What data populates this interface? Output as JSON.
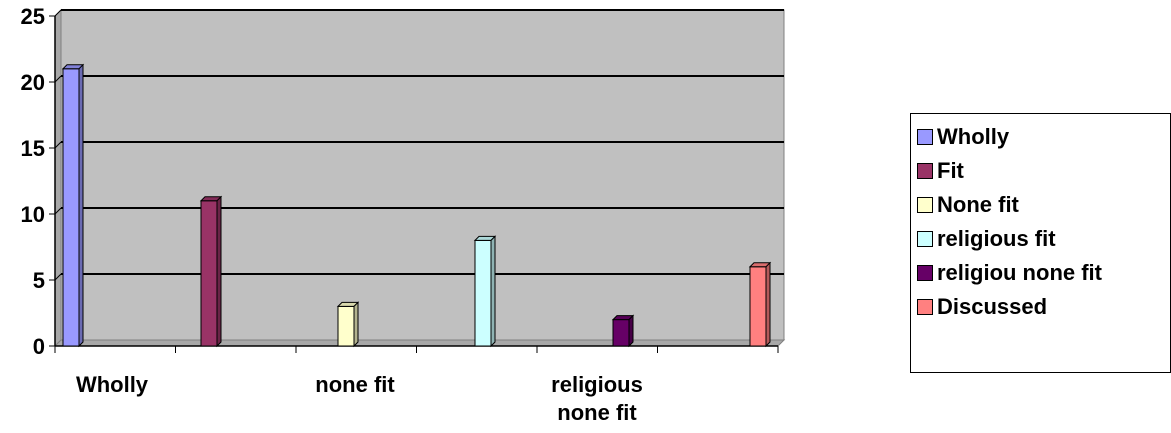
{
  "chart_data": {
    "type": "bar",
    "title": "",
    "xlabel": "",
    "ylabel": "",
    "ylim": [
      0,
      25
    ],
    "yticks": [
      0,
      5,
      10,
      15,
      20,
      25
    ],
    "grid": true,
    "legend_position": "right",
    "plot_background": "#c0c0c0",
    "categories": [
      "Wholly",
      "Fit",
      "None fit",
      "religious fit",
      "religiou none fit",
      "Discussed"
    ],
    "x_tick_labels": [
      "Wholly",
      "none fit",
      "religious none fit"
    ],
    "series": [
      {
        "name": "Wholly",
        "color": "#9999ff",
        "values": [
          21,
          0,
          0,
          0,
          0,
          0
        ]
      },
      {
        "name": "Fit",
        "color": "#993366",
        "values": [
          0,
          11,
          0,
          0,
          0,
          0
        ]
      },
      {
        "name": "None fit",
        "color": "#ffffcc",
        "values": [
          0,
          0,
          3,
          0,
          0,
          0
        ]
      },
      {
        "name": "religious fit",
        "color": "#ccffff",
        "values": [
          0,
          0,
          0,
          8,
          0,
          0
        ]
      },
      {
        "name": "religiou none fit",
        "color": "#660066",
        "values": [
          0,
          0,
          0,
          0,
          2,
          0
        ]
      },
      {
        "name": "Discussed",
        "color": "#ff8080",
        "values": [
          0,
          0,
          0,
          0,
          0,
          6
        ]
      }
    ]
  }
}
